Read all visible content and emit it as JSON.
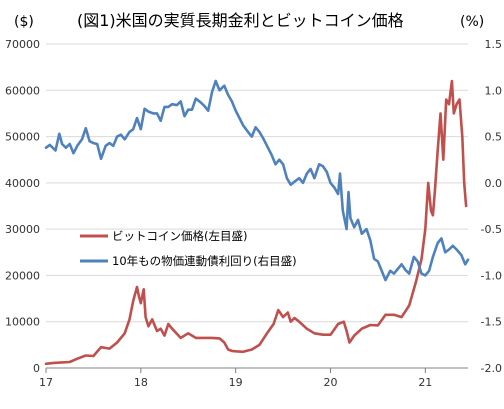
{
  "chart_data": {
    "type": "line",
    "title": "(図1)米国の実質長期金利とビットコイン価格",
    "left_unit": "($)",
    "right_unit": "(%)",
    "x_ticks": [
      "17",
      "18",
      "19",
      "20",
      "21"
    ],
    "x_domain": [
      2017.0,
      2021.45
    ],
    "y_left": {
      "lim": [
        0,
        70000
      ],
      "ticks": [
        "0",
        "10000",
        "20000",
        "30000",
        "40000",
        "50000",
        "60000",
        "70000"
      ]
    },
    "y_right": {
      "lim": [
        -2.0,
        1.5
      ],
      "ticks": [
        "-2.0",
        "-1.5",
        "-1.0",
        "-0.5",
        "0.0",
        "0.5",
        "1.0",
        "1.5"
      ]
    },
    "grid": "horizontal",
    "legend_position": "center-left",
    "series": [
      {
        "name": "ビットコイン価格(左目盛)",
        "axis": "left",
        "color": "#c0504d",
        "x": [
          2017.0,
          2017.08,
          2017.17,
          2017.25,
          2017.33,
          2017.42,
          2017.5,
          2017.58,
          2017.67,
          2017.75,
          2017.83,
          2017.88,
          2017.92,
          2017.96,
          2017.98,
          2018.0,
          2018.03,
          2018.05,
          2018.08,
          2018.12,
          2018.17,
          2018.21,
          2018.25,
          2018.29,
          2018.33,
          2018.42,
          2018.5,
          2018.58,
          2018.67,
          2018.75,
          2018.83,
          2018.88,
          2018.92,
          2018.96,
          2019.0,
          2019.08,
          2019.17,
          2019.25,
          2019.33,
          2019.4,
          2019.45,
          2019.5,
          2019.55,
          2019.58,
          2019.62,
          2019.67,
          2019.75,
          2019.83,
          2019.92,
          2020.0,
          2020.08,
          2020.14,
          2020.17,
          2020.2,
          2020.25,
          2020.33,
          2020.42,
          2020.5,
          2020.58,
          2020.67,
          2020.75,
          2020.83,
          2020.9,
          2020.96,
          2021.0,
          2021.03,
          2021.06,
          2021.08,
          2021.1,
          2021.13,
          2021.16,
          2021.19,
          2021.22,
          2021.25,
          2021.28,
          2021.3,
          2021.33,
          2021.36,
          2021.39,
          2021.41,
          2021.43
        ],
        "values": [
          900,
          1100,
          1200,
          1300,
          2000,
          2700,
          2600,
          4500,
          4200,
          5500,
          7500,
          10500,
          14500,
          17500,
          15500,
          14000,
          17000,
          11000,
          9000,
          10500,
          8000,
          8500,
          7000,
          9500,
          8500,
          6500,
          7500,
          6500,
          6500,
          6500,
          6400,
          5500,
          4000,
          3700,
          3600,
          3500,
          4000,
          5000,
          7500,
          9500,
          12500,
          11000,
          12000,
          10000,
          10800,
          10000,
          8500,
          7500,
          7200,
          7200,
          9500,
          10000,
          8000,
          5500,
          7000,
          8500,
          9300,
          9200,
          11500,
          11500,
          11000,
          13500,
          18500,
          23500,
          30000,
          40000,
          34000,
          33000,
          38000,
          47000,
          55000,
          45000,
          58000,
          57000,
          62000,
          55000,
          57000,
          58000,
          50000,
          40000,
          35000
        ]
      },
      {
        "name": "10年もの物価連動債利回り(右目盛)",
        "axis": "right",
        "color": "#4f81bd",
        "x": [
          2017.0,
          2017.04,
          2017.08,
          2017.1,
          2017.14,
          2017.17,
          2017.21,
          2017.25,
          2017.29,
          2017.33,
          2017.38,
          2017.42,
          2017.46,
          2017.5,
          2017.54,
          2017.58,
          2017.63,
          2017.67,
          2017.71,
          2017.75,
          2017.79,
          2017.83,
          2017.88,
          2017.92,
          2017.96,
          2018.0,
          2018.04,
          2018.08,
          2018.13,
          2018.17,
          2018.21,
          2018.25,
          2018.29,
          2018.33,
          2018.38,
          2018.42,
          2018.46,
          2018.5,
          2018.54,
          2018.58,
          2018.63,
          2018.67,
          2018.71,
          2018.75,
          2018.79,
          2018.83,
          2018.88,
          2018.92,
          2018.96,
          2019.0,
          2019.04,
          2019.08,
          2019.13,
          2019.17,
          2019.21,
          2019.25,
          2019.29,
          2019.33,
          2019.38,
          2019.42,
          2019.46,
          2019.5,
          2019.54,
          2019.58,
          2019.63,
          2019.67,
          2019.71,
          2019.75,
          2019.79,
          2019.83,
          2019.88,
          2019.92,
          2019.96,
          2020.0,
          2020.04,
          2020.08,
          2020.1,
          2020.13,
          2020.17,
          2020.19,
          2020.21,
          2020.25,
          2020.29,
          2020.33,
          2020.38,
          2020.42,
          2020.46,
          2020.5,
          2020.54,
          2020.58,
          2020.63,
          2020.67,
          2020.71,
          2020.75,
          2020.79,
          2020.83,
          2020.88,
          2020.92,
          2020.96,
          2021.0,
          2021.04,
          2021.08,
          2021.13,
          2021.17,
          2021.21,
          2021.25,
          2021.29,
          2021.33,
          2021.38,
          2021.42,
          2021.45
        ],
        "values": [
          0.38,
          0.41,
          0.37,
          0.35,
          0.53,
          0.42,
          0.38,
          0.42,
          0.32,
          0.4,
          0.47,
          0.59,
          0.45,
          0.43,
          0.42,
          0.26,
          0.4,
          0.43,
          0.4,
          0.5,
          0.52,
          0.47,
          0.55,
          0.58,
          0.7,
          0.58,
          0.8,
          0.77,
          0.75,
          0.75,
          0.67,
          0.82,
          0.82,
          0.85,
          0.84,
          0.88,
          0.72,
          0.79,
          0.79,
          0.91,
          0.87,
          0.83,
          0.78,
          0.98,
          1.1,
          1.0,
          1.05,
          0.95,
          0.88,
          0.78,
          0.7,
          0.62,
          0.55,
          0.5,
          0.6,
          0.55,
          0.48,
          0.4,
          0.3,
          0.2,
          0.25,
          0.2,
          0.05,
          -0.02,
          0.02,
          0.05,
          0.0,
          0.1,
          0.15,
          0.05,
          0.2,
          0.18,
          0.12,
          0.0,
          -0.05,
          -0.12,
          0.1,
          -0.3,
          -0.5,
          -0.1,
          -0.38,
          -0.48,
          -0.4,
          -0.55,
          -0.5,
          -0.62,
          -0.82,
          -0.85,
          -0.95,
          -1.05,
          -0.95,
          -0.98,
          -0.93,
          -0.88,
          -0.94,
          -0.98,
          -0.8,
          -0.85,
          -0.98,
          -1.0,
          -0.95,
          -0.8,
          -0.65,
          -0.6,
          -0.75,
          -0.72,
          -0.68,
          -0.72,
          -0.78,
          -0.88,
          -0.83
        ]
      }
    ]
  }
}
